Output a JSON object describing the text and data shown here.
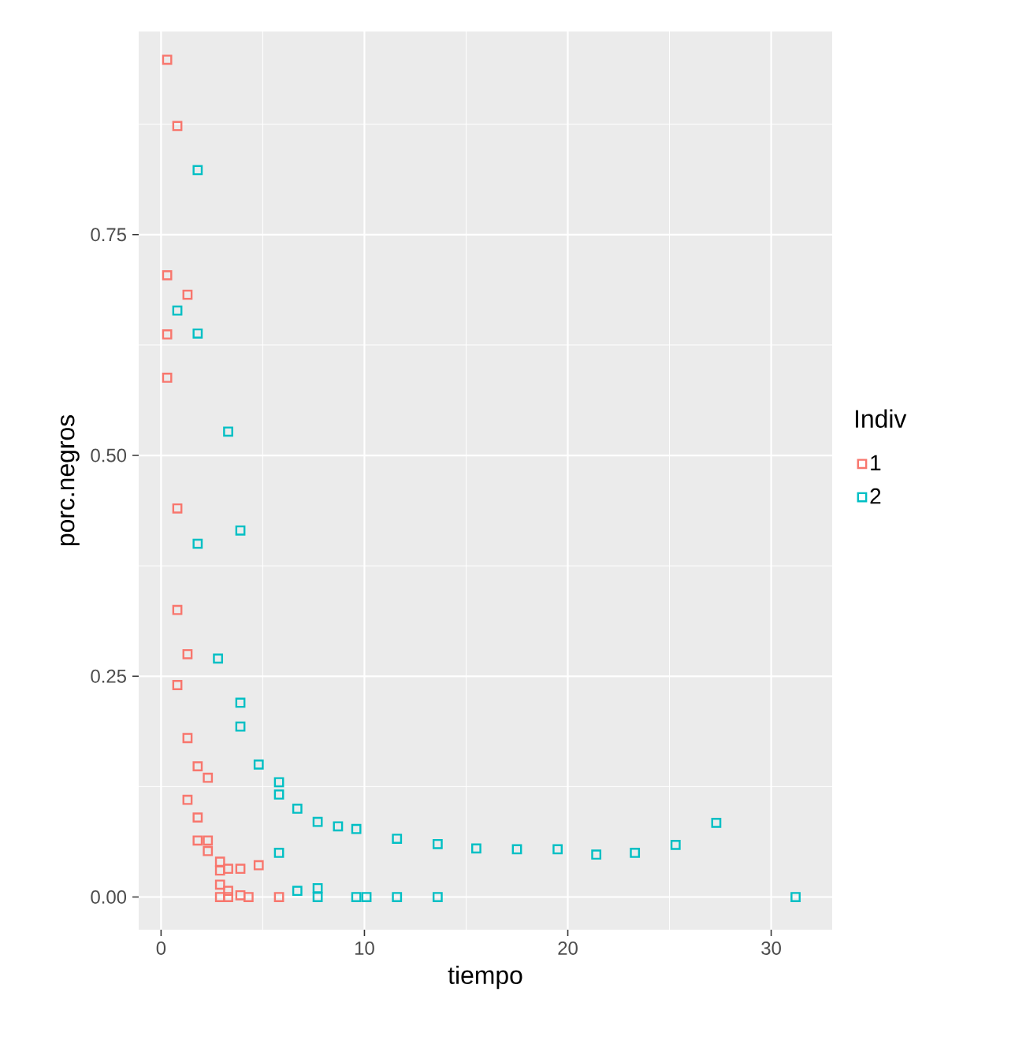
{
  "chart_data": {
    "type": "scatter",
    "xlabel": "tiempo",
    "ylabel": "porc.negros",
    "legend_title": "Indiv",
    "legend": "right",
    "grid": true,
    "marker": "square",
    "xlim": [
      -1.1,
      33
    ],
    "ylim": [
      -0.037,
      0.98
    ],
    "xticks": [
      0,
      10,
      20,
      30
    ],
    "yticks": [
      {
        "value": 0,
        "label": "0.00"
      },
      {
        "value": 0.25,
        "label": "0.25"
      },
      {
        "value": 0.5,
        "label": "0.50"
      },
      {
        "value": 0.75,
        "label": "0.75"
      }
    ],
    "series": [
      {
        "name": "1",
        "color": "#f8766d",
        "x": [
          0.3,
          0.8,
          0.3,
          1.3,
          0.3,
          0.3,
          0.8,
          0.8,
          1.3,
          0.8,
          1.3,
          1.8,
          2.3,
          1.3,
          1.8,
          1.8,
          2.3,
          2.3,
          2.9,
          2.9,
          3.3,
          3.9,
          2.9,
          3.3,
          3.9,
          4.3,
          2.9,
          3.3,
          4.8,
          5.8
        ],
        "values": [
          0.948,
          0.873,
          0.704,
          0.682,
          0.637,
          0.588,
          0.44,
          0.325,
          0.275,
          0.24,
          0.18,
          0.148,
          0.135,
          0.11,
          0.09,
          0.064,
          0.064,
          0.052,
          0.04,
          0.03,
          0.032,
          0.032,
          0.014,
          0.007,
          0.002,
          0,
          0,
          0,
          0.036,
          0
        ]
      },
      {
        "name": "2",
        "color": "#00bfc4",
        "x": [
          1.8,
          0.8,
          1.8,
          3.3,
          1.8,
          3.9,
          2.8,
          3.9,
          3.9,
          4.8,
          5.8,
          5.8,
          6.7,
          7.7,
          8.7,
          9.6,
          11.6,
          13.6,
          15.5,
          17.5,
          19.5,
          21.4,
          23.3,
          25.3,
          27.3,
          5.8,
          6.7,
          7.7,
          7.7,
          9.6,
          10.1,
          11.6,
          13.6,
          31.2
        ],
        "values": [
          0.823,
          0.664,
          0.638,
          0.527,
          0.4,
          0.415,
          0.27,
          0.22,
          0.193,
          0.15,
          0.13,
          0.116,
          0.1,
          0.085,
          0.08,
          0.077,
          0.066,
          0.06,
          0.055,
          0.054,
          0.054,
          0.048,
          0.05,
          0.059,
          0.084,
          0.05,
          0.007,
          0.01,
          0,
          0,
          0,
          0,
          0,
          0
        ]
      }
    ]
  }
}
